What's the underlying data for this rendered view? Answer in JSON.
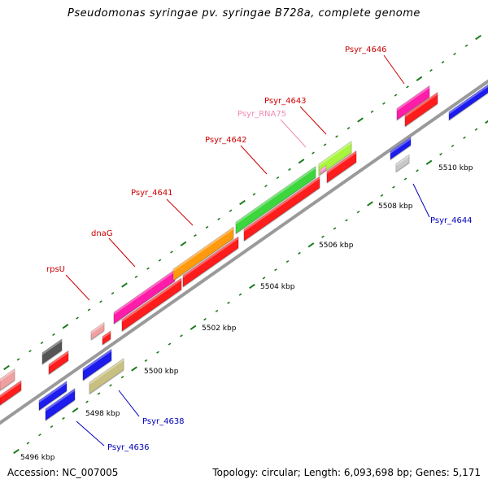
{
  "title": "Pseudomonas syringae pv. syringae B728a, complete genome",
  "footer": {
    "accession": "Accession: NC_007005",
    "summary": "Topology: circular; Length: 6,093,698 bp; Genes: 5,171"
  },
  "map": {
    "bp_labels": [
      {
        "text": "5496 kbp"
      },
      {
        "text": "5498 kbp"
      },
      {
        "text": "5500 kbp"
      },
      {
        "text": "5502 kbp"
      },
      {
        "text": "5504 kbp"
      },
      {
        "text": "5506 kbp"
      },
      {
        "text": "5508 kbp"
      },
      {
        "text": "5510 kbp"
      }
    ],
    "gene_labels": [
      {
        "name": "rpsU",
        "color": "#cc0000"
      },
      {
        "name": "dnaG",
        "color": "#cc0000"
      },
      {
        "name": "Psyr_4641",
        "color": "#cc0000"
      },
      {
        "name": "Psyr_4642",
        "color": "#cc0000"
      },
      {
        "name": "Psyr_RNA75",
        "color": "#f08cb4"
      },
      {
        "name": "Psyr_4643",
        "color": "#cc0000"
      },
      {
        "name": "Psyr_4646",
        "color": "#cc0000"
      },
      {
        "name": "Psyr_4644",
        "color": "#0000bb"
      },
      {
        "name": "Psyr_4638",
        "color": "#0000bb"
      },
      {
        "name": "Psyr_4636",
        "color": "#0000bb"
      }
    ],
    "colors": {
      "backbone": "#9a9a9a",
      "tick": "#1a7a1a",
      "cds_red": "#ff1a1a",
      "cds_blue": "#1a1aee",
      "gene_magenta": "#ff1aa8",
      "gene_orange": "#ff9a10",
      "gene_green": "#3ed63e",
      "gene_lime": "#a8f53c",
      "gene_pink": "#f0a0a0",
      "gene_gray": "#555555",
      "gene_lightgray": "#c8c8c8",
      "gene_khaki": "#c8c080",
      "rna_pink": "#ff8ad0"
    }
  }
}
